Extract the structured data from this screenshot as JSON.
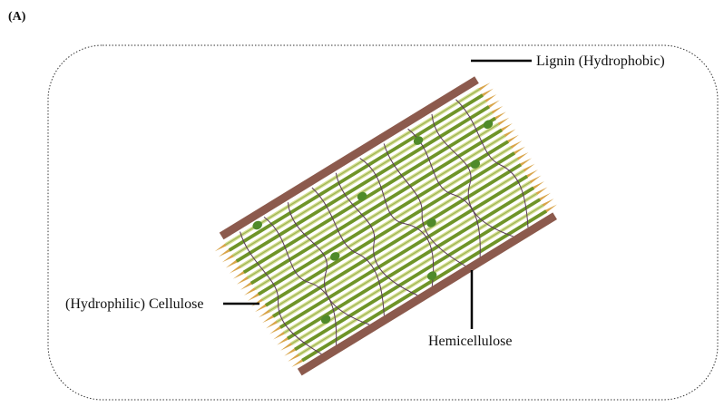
{
  "panel_label": "(A)",
  "labels": {
    "lignin": "Lignin (Hydrophobic)",
    "cellulose": "(Hydrophilic) Cellulose",
    "hemicellulose": "Hemicellulose"
  },
  "colors": {
    "frame": "#333333",
    "lignin": "#8c5a4d",
    "cellulose_light": "#d4dd8f",
    "cellulose_dark": "#6f9428",
    "fiber_tip": "#d9a54a",
    "hemicellulose": "#5a3a5a",
    "node": "#4f8a2a",
    "leader": "#000000"
  },
  "structure": {
    "cellulose_fiber_count": 22,
    "hemicellulose_chain_count": 10,
    "hemicellulose_node_count": 9
  }
}
